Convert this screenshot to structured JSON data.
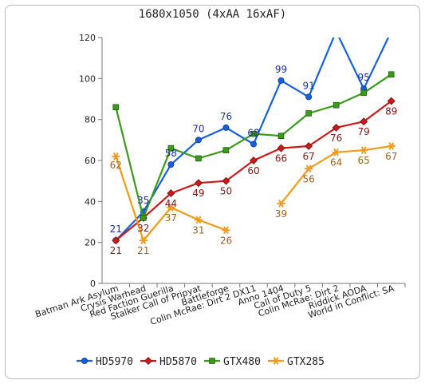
{
  "chart_data": {
    "type": "line",
    "title": "1680x1050 (4xAA 16xAF)",
    "xlabel": "",
    "ylabel": "",
    "ylim": [
      0,
      120
    ],
    "yticks": [
      0,
      20,
      40,
      60,
      80,
      100,
      120
    ],
    "grid": "none",
    "legend_position": "bottom",
    "categories": [
      "Batman Ark Asylum",
      "Crysis Warhead",
      "Red Faction Guerilla",
      "Stalker Call of Pripyat",
      "Battleforge",
      "Colin McRae: Dirt 2 DX11",
      "Anno 1404",
      "Call of Duty 5",
      "Colin McRae: Dirt 2",
      "Riddick AODA",
      "World in Conflict: SA"
    ],
    "series": [
      {
        "name": "HD5970",
        "color": "#1560e0",
        "marker": "circle",
        "values": [
          21,
          35,
          58,
          70,
          76,
          68,
          99,
          91,
          123,
          95,
          123
        ],
        "labels": [
          "21",
          "35",
          "58",
          "70",
          "76",
          "68",
          "99",
          "91",
          "",
          "95",
          ""
        ]
      },
      {
        "name": "HD5870",
        "color": "#cc1a1a",
        "marker": "diamond",
        "values": [
          21,
          32,
          44,
          49,
          50,
          60,
          66,
          67,
          76,
          79,
          89
        ],
        "labels": [
          "21",
          "32",
          "44",
          "49",
          "50",
          "60",
          "66",
          "67",
          "76",
          "79",
          "89"
        ]
      },
      {
        "name": "GTX480",
        "color": "#3a9a1a",
        "marker": "square",
        "values": [
          86,
          32,
          66,
          61,
          65,
          73,
          72,
          83,
          87,
          93,
          102
        ],
        "labels": [
          "",
          "",
          "",
          "",
          "",
          "",
          "",
          "",
          "",
          "",
          ""
        ]
      },
      {
        "name": "GTX285",
        "color": "#f29a1a",
        "marker": "star",
        "values": [
          62,
          21,
          37,
          31,
          26,
          null,
          39,
          56,
          64,
          65,
          67
        ],
        "labels": [
          "62",
          "21",
          "37",
          "31",
          "26",
          "",
          "39",
          "56",
          "64",
          "65",
          "67"
        ]
      }
    ]
  }
}
